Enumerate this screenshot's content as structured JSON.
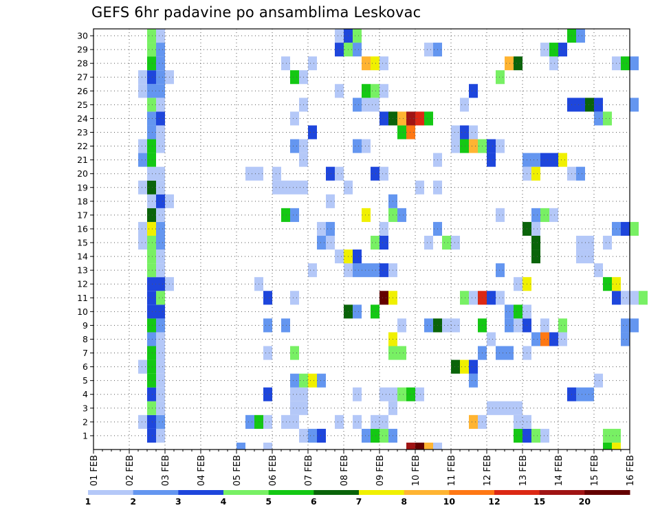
{
  "chart_data": {
    "type": "heatmap",
    "title": "GEFS 6hr padavine po ansamblima Leskovac",
    "xlabel": "",
    "ylabel": "",
    "x_ticks": [
      "01 FEB",
      "02 FEB",
      "03 FEB",
      "04 FEB",
      "05 FEB",
      "06 FEB",
      "07 FEB",
      "08 FEB",
      "09 FEB",
      "10 FEB",
      "11 FEB",
      "12 FEB",
      "13 FEB",
      "14 FEB",
      "15 FEB",
      "16 FEB"
    ],
    "y_ticks": [
      1,
      2,
      3,
      4,
      5,
      6,
      7,
      8,
      9,
      10,
      11,
      12,
      13,
      14,
      15,
      16,
      17,
      18,
      19,
      20,
      21,
      22,
      23,
      24,
      25,
      26,
      27,
      28,
      29,
      30
    ],
    "xlim": [
      0,
      60
    ],
    "ylim": [
      0,
      30
    ],
    "x_step_hours": 6,
    "grid": true,
    "colorbar": {
      "labels": [
        "1",
        "2",
        "3",
        "4",
        "5",
        "6",
        "7",
        "8",
        "10",
        "12",
        "15",
        "20"
      ],
      "colors": [
        "#b4c8f8",
        "#6496f0",
        "#1e46dc",
        "#78f064",
        "#14c814",
        "#0a640a",
        "#f0f000",
        "#ffb432",
        "#ff7814",
        "#dc2814",
        "#a01414",
        "#640000"
      ]
    },
    "cells": {
      "1": [
        [
          6,
          "#1e46dc"
        ],
        [
          7,
          "#b4c8f8"
        ],
        [
          23,
          "#b4c8f8"
        ],
        [
          24,
          "#6496f0"
        ],
        [
          25,
          "#1e46dc"
        ],
        [
          30,
          "#6496f0"
        ],
        [
          31,
          "#14c814"
        ],
        [
          32,
          "#78f064"
        ],
        [
          33,
          "#6496f0"
        ],
        [
          47,
          "#14c814"
        ],
        [
          48,
          "#1e46dc"
        ],
        [
          49,
          "#78f064"
        ],
        [
          50,
          "#b4c8f8"
        ],
        [
          57,
          "#78f064"
        ],
        [
          58,
          "#78f064"
        ]
      ],
      "2": [
        [
          5,
          "#b4c8f8"
        ],
        [
          6,
          "#1e46dc"
        ],
        [
          7,
          "#6496f0"
        ],
        [
          17,
          "#6496f0"
        ],
        [
          18,
          "#14c814"
        ],
        [
          19,
          "#b4c8f8"
        ],
        [
          21,
          "#b4c8f8"
        ],
        [
          22,
          "#b4c8f8"
        ],
        [
          27,
          "#b4c8f8"
        ],
        [
          29,
          "#b4c8f8"
        ],
        [
          31,
          "#b4c8f8"
        ],
        [
          32,
          "#b4c8f8"
        ],
        [
          42,
          "#ffb432"
        ],
        [
          43,
          "#b4c8f8"
        ],
        [
          47,
          "#b4c8f8"
        ],
        [
          48,
          "#b4c8f8"
        ]
      ],
      "3": [
        [
          6,
          "#78f064"
        ],
        [
          7,
          "#b4c8f8"
        ],
        [
          22,
          "#b4c8f8"
        ],
        [
          23,
          "#b4c8f8"
        ],
        [
          33,
          "#b4c8f8"
        ],
        [
          44,
          "#b4c8f8"
        ],
        [
          45,
          "#b4c8f8"
        ],
        [
          46,
          "#b4c8f8"
        ],
        [
          47,
          "#b4c8f8"
        ]
      ],
      "4": [
        [
          6,
          "#1e46dc"
        ],
        [
          7,
          "#b4c8f8"
        ],
        [
          19,
          "#1e46dc"
        ],
        [
          22,
          "#b4c8f8"
        ],
        [
          23,
          "#b4c8f8"
        ],
        [
          29,
          "#b4c8f8"
        ],
        [
          32,
          "#b4c8f8"
        ],
        [
          33,
          "#b4c8f8"
        ],
        [
          34,
          "#78f064"
        ],
        [
          35,
          "#14c814"
        ],
        [
          36,
          "#b4c8f8"
        ],
        [
          53,
          "#1e46dc"
        ],
        [
          54,
          "#6496f0"
        ],
        [
          55,
          "#6496f0"
        ]
      ],
      "5": [
        [
          6,
          "#14c814"
        ],
        [
          7,
          "#b4c8f8"
        ],
        [
          22,
          "#6496f0"
        ],
        [
          23,
          "#78f064"
        ],
        [
          24,
          "#f0f000"
        ],
        [
          25,
          "#6496f0"
        ],
        [
          42,
          "#6496f0"
        ],
        [
          56,
          "#b4c8f8"
        ]
      ],
      "6": [
        [
          5,
          "#b4c8f8"
        ],
        [
          6,
          "#14c814"
        ],
        [
          7,
          "#b4c8f8"
        ],
        [
          40,
          "#0a640a"
        ],
        [
          41,
          "#f0f000"
        ],
        [
          42,
          "#1e46dc"
        ]
      ],
      "7": [
        [
          6,
          "#14c814"
        ],
        [
          7,
          "#b4c8f8"
        ],
        [
          19,
          "#b4c8f8"
        ],
        [
          22,
          "#78f064"
        ],
        [
          33,
          "#78f064"
        ],
        [
          34,
          "#78f064"
        ],
        [
          43,
          "#6496f0"
        ],
        [
          45,
          "#6496f0"
        ],
        [
          46,
          "#6496f0"
        ],
        [
          48,
          "#b4c8f8"
        ]
      ],
      "8": [
        [
          6,
          "#6496f0"
        ],
        [
          7,
          "#b4c8f8"
        ],
        [
          33,
          "#f0f000"
        ],
        [
          44,
          "#b4c8f8"
        ],
        [
          49,
          "#6496f0"
        ],
        [
          50,
          "#ff7814"
        ],
        [
          51,
          "#1e46dc"
        ],
        [
          52,
          "#b4c8f8"
        ],
        [
          59,
          "#6496f0"
        ]
      ],
      "9": [
        [
          6,
          "#14c814"
        ],
        [
          7,
          "#6496f0"
        ],
        [
          19,
          "#6496f0"
        ],
        [
          21,
          "#6496f0"
        ],
        [
          34,
          "#b4c8f8"
        ],
        [
          37,
          "#6496f0"
        ],
        [
          38,
          "#0a640a"
        ],
        [
          39,
          "#b4c8f8"
        ],
        [
          40,
          "#b4c8f8"
        ],
        [
          43,
          "#14c814"
        ],
        [
          46,
          "#6496f0"
        ],
        [
          47,
          "#b4c8f8"
        ],
        [
          48,
          "#1e46dc"
        ],
        [
          50,
          "#b4c8f8"
        ],
        [
          52,
          "#78f064"
        ],
        [
          59,
          "#6496f0"
        ],
        [
          60,
          "#6496f0"
        ]
      ],
      "10": [
        [
          6,
          "#1e46dc"
        ],
        [
          7,
          "#1e46dc"
        ],
        [
          28,
          "#0a640a"
        ],
        [
          29,
          "#6496f0"
        ],
        [
          31,
          "#14c814"
        ],
        [
          46,
          "#6496f0"
        ],
        [
          47,
          "#14c814"
        ],
        [
          48,
          "#b4c8f8"
        ]
      ],
      "11": [
        [
          6,
          "#1e46dc"
        ],
        [
          7,
          "#78f064"
        ],
        [
          19,
          "#1e46dc"
        ],
        [
          22,
          "#b4c8f8"
        ],
        [
          32,
          "#640000"
        ],
        [
          33,
          "#f0f000"
        ],
        [
          41,
          "#78f064"
        ],
        [
          42,
          "#b4c8f8"
        ],
        [
          43,
          "#dc2814"
        ],
        [
          44,
          "#1e46dc"
        ],
        [
          45,
          "#b4c8f8"
        ],
        [
          58,
          "#1e46dc"
        ],
        [
          59,
          "#b4c8f8"
        ],
        [
          60,
          "#b4c8f8"
        ],
        [
          61,
          "#78f064"
        ]
      ],
      "12": [
        [
          6,
          "#1e46dc"
        ],
        [
          7,
          "#1e46dc"
        ],
        [
          8,
          "#b4c8f8"
        ],
        [
          18,
          "#b4c8f8"
        ],
        [
          47,
          "#b4c8f8"
        ],
        [
          48,
          "#f0f000"
        ],
        [
          57,
          "#14c814"
        ],
        [
          58,
          "#f0f000"
        ]
      ],
      "13": [
        [
          6,
          "#78f064"
        ],
        [
          7,
          "#b4c8f8"
        ],
        [
          24,
          "#b4c8f8"
        ],
        [
          28,
          "#b4c8f8"
        ],
        [
          29,
          "#6496f0"
        ],
        [
          30,
          "#6496f0"
        ],
        [
          31,
          "#6496f0"
        ],
        [
          32,
          "#1e46dc"
        ],
        [
          33,
          "#b4c8f8"
        ],
        [
          45,
          "#6496f0"
        ],
        [
          56,
          "#b4c8f8"
        ]
      ],
      "14": [
        [
          6,
          "#78f064"
        ],
        [
          7,
          "#b4c8f8"
        ],
        [
          27,
          "#b4c8f8"
        ],
        [
          28,
          "#f0f000"
        ],
        [
          29,
          "#1e46dc"
        ],
        [
          49,
          "#0a640a"
        ],
        [
          54,
          "#b4c8f8"
        ],
        [
          55,
          "#b4c8f8"
        ]
      ],
      "15": [
        [
          5,
          "#b4c8f8"
        ],
        [
          6,
          "#78f064"
        ],
        [
          7,
          "#6496f0"
        ],
        [
          25,
          "#6496f0"
        ],
        [
          26,
          "#b4c8f8"
        ],
        [
          31,
          "#78f064"
        ],
        [
          32,
          "#1e46dc"
        ],
        [
          37,
          "#b4c8f8"
        ],
        [
          39,
          "#78f064"
        ],
        [
          40,
          "#b4c8f8"
        ],
        [
          49,
          "#0a640a"
        ],
        [
          54,
          "#b4c8f8"
        ],
        [
          55,
          "#b4c8f8"
        ],
        [
          57,
          "#b4c8f8"
        ]
      ],
      "16": [
        [
          5,
          "#b4c8f8"
        ],
        [
          6,
          "#f0f000"
        ],
        [
          7,
          "#6496f0"
        ],
        [
          25,
          "#b4c8f8"
        ],
        [
          26,
          "#6496f0"
        ],
        [
          32,
          "#b4c8f8"
        ],
        [
          38,
          "#6496f0"
        ],
        [
          48,
          "#0a640a"
        ],
        [
          49,
          "#b4c8f8"
        ],
        [
          58,
          "#6496f0"
        ],
        [
          59,
          "#1e46dc"
        ],
        [
          60,
          "#78f064"
        ]
      ],
      "17": [
        [
          6,
          "#0a640a"
        ],
        [
          7,
          "#b4c8f8"
        ],
        [
          21,
          "#14c814"
        ],
        [
          22,
          "#6496f0"
        ],
        [
          30,
          "#f0f000"
        ],
        [
          33,
          "#78f064"
        ],
        [
          34,
          "#6496f0"
        ],
        [
          45,
          "#b4c8f8"
        ],
        [
          49,
          "#6496f0"
        ],
        [
          50,
          "#78f064"
        ],
        [
          51,
          "#b4c8f8"
        ]
      ],
      "18": [
        [
          6,
          "#b4c8f8"
        ],
        [
          7,
          "#1e46dc"
        ],
        [
          8,
          "#b4c8f8"
        ],
        [
          26,
          "#b4c8f8"
        ],
        [
          33,
          "#6496f0"
        ]
      ],
      "19": [
        [
          5,
          "#b4c8f8"
        ],
        [
          6,
          "#0a640a"
        ],
        [
          7,
          "#b4c8f8"
        ],
        [
          20,
          "#b4c8f8"
        ],
        [
          21,
          "#b4c8f8"
        ],
        [
          22,
          "#b4c8f8"
        ],
        [
          23,
          "#b4c8f8"
        ],
        [
          28,
          "#b4c8f8"
        ],
        [
          36,
          "#b4c8f8"
        ],
        [
          38,
          "#b4c8f8"
        ]
      ],
      "20": [
        [
          6,
          "#b4c8f8"
        ],
        [
          7,
          "#b4c8f8"
        ],
        [
          17,
          "#b4c8f8"
        ],
        [
          18,
          "#b4c8f8"
        ],
        [
          20,
          "#b4c8f8"
        ],
        [
          26,
          "#1e46dc"
        ],
        [
          27,
          "#b4c8f8"
        ],
        [
          31,
          "#1e46dc"
        ],
        [
          32,
          "#b4c8f8"
        ],
        [
          48,
          "#b4c8f8"
        ],
        [
          49,
          "#f0f000"
        ],
        [
          53,
          "#b4c8f8"
        ],
        [
          54,
          "#6496f0"
        ]
      ],
      "21": [
        [
          5,
          "#6496f0"
        ],
        [
          6,
          "#14c814"
        ],
        [
          23,
          "#b4c8f8"
        ],
        [
          38,
          "#b4c8f8"
        ],
        [
          44,
          "#1e46dc"
        ],
        [
          48,
          "#6496f0"
        ],
        [
          49,
          "#6496f0"
        ],
        [
          50,
          "#1e46dc"
        ],
        [
          51,
          "#1e46dc"
        ],
        [
          52,
          "#f0f000"
        ]
      ],
      "22": [
        [
          5,
          "#b4c8f8"
        ],
        [
          6,
          "#14c814"
        ],
        [
          7,
          "#b4c8f8"
        ],
        [
          22,
          "#6496f0"
        ],
        [
          23,
          "#b4c8f8"
        ],
        [
          29,
          "#6496f0"
        ],
        [
          30,
          "#b4c8f8"
        ],
        [
          40,
          "#b4c8f8"
        ],
        [
          41,
          "#14c814"
        ],
        [
          42,
          "#ffb432"
        ],
        [
          43,
          "#78f064"
        ],
        [
          44,
          "#1e46dc"
        ],
        [
          45,
          "#b4c8f8"
        ]
      ],
      "23": [
        [
          6,
          "#6496f0"
        ],
        [
          7,
          "#b4c8f8"
        ],
        [
          24,
          "#1e46dc"
        ],
        [
          34,
          "#14c814"
        ],
        [
          35,
          "#ff7814"
        ],
        [
          40,
          "#b4c8f8"
        ],
        [
          41,
          "#1e46dc"
        ],
        [
          42,
          "#b4c8f8"
        ]
      ],
      "24": [
        [
          6,
          "#6496f0"
        ],
        [
          7,
          "#1e46dc"
        ],
        [
          22,
          "#b4c8f8"
        ],
        [
          32,
          "#1e46dc"
        ],
        [
          33,
          "#0a640a"
        ],
        [
          34,
          "#ffb432"
        ],
        [
          35,
          "#a01414"
        ],
        [
          36,
          "#dc2814"
        ],
        [
          37,
          "#14c814"
        ],
        [
          56,
          "#6496f0"
        ],
        [
          57,
          "#78f064"
        ]
      ],
      "25": [
        [
          6,
          "#78f064"
        ],
        [
          7,
          "#b4c8f8"
        ],
        [
          23,
          "#b4c8f8"
        ],
        [
          29,
          "#6496f0"
        ],
        [
          30,
          "#b4c8f8"
        ],
        [
          31,
          "#b4c8f8"
        ],
        [
          41,
          "#b4c8f8"
        ],
        [
          53,
          "#1e46dc"
        ],
        [
          54,
          "#1e46dc"
        ],
        [
          55,
          "#0a640a"
        ],
        [
          56,
          "#1e46dc"
        ],
        [
          60,
          "#6496f0"
        ]
      ],
      "26": [
        [
          5,
          "#b4c8f8"
        ],
        [
          6,
          "#6496f0"
        ],
        [
          7,
          "#6496f0"
        ],
        [
          27,
          "#b4c8f8"
        ],
        [
          30,
          "#14c814"
        ],
        [
          31,
          "#78f064"
        ],
        [
          32,
          "#b4c8f8"
        ],
        [
          42,
          "#1e46dc"
        ]
      ],
      "27": [
        [
          5,
          "#b4c8f8"
        ],
        [
          6,
          "#1e46dc"
        ],
        [
          7,
          "#6496f0"
        ],
        [
          8,
          "#b4c8f8"
        ],
        [
          22,
          "#14c814"
        ],
        [
          23,
          "#b4c8f8"
        ],
        [
          45,
          "#78f064"
        ]
      ],
      "28": [
        [
          6,
          "#14c814"
        ],
        [
          7,
          "#6496f0"
        ],
        [
          21,
          "#b4c8f8"
        ],
        [
          24,
          "#b4c8f8"
        ],
        [
          30,
          "#ffb432"
        ],
        [
          31,
          "#f0f000"
        ],
        [
          32,
          "#b4c8f8"
        ],
        [
          46,
          "#ffb432"
        ],
        [
          47,
          "#0a640a"
        ],
        [
          51,
          "#b4c8f8"
        ],
        [
          58,
          "#b4c8f8"
        ],
        [
          59,
          "#14c814"
        ],
        [
          60,
          "#6496f0"
        ]
      ],
      "29": [
        [
          6,
          "#78f064"
        ],
        [
          7,
          "#6496f0"
        ],
        [
          27,
          "#1e46dc"
        ],
        [
          28,
          "#78f064"
        ],
        [
          29,
          "#6496f0"
        ],
        [
          37,
          "#b4c8f8"
        ],
        [
          38,
          "#6496f0"
        ],
        [
          50,
          "#b4c8f8"
        ],
        [
          51,
          "#14c814"
        ],
        [
          52,
          "#1e46dc"
        ]
      ],
      "30": [
        [
          6,
          "#78f064"
        ],
        [
          7,
          "#b4c8f8"
        ],
        [
          27,
          "#b4c8f8"
        ],
        [
          28,
          "#1e46dc"
        ],
        [
          29,
          "#78f064"
        ],
        [
          53,
          "#14c814"
        ],
        [
          54,
          "#6496f0"
        ]
      ],
      "0": [
        [
          16,
          "#6496f0"
        ],
        [
          19,
          "#b4c8f8"
        ],
        [
          35,
          "#a01414"
        ],
        [
          36,
          "#640000"
        ],
        [
          37,
          "#ffb432"
        ],
        [
          38,
          "#b4c8f8"
        ],
        [
          57,
          "#14c814"
        ],
        [
          58,
          "#f0f000"
        ]
      ]
    }
  }
}
